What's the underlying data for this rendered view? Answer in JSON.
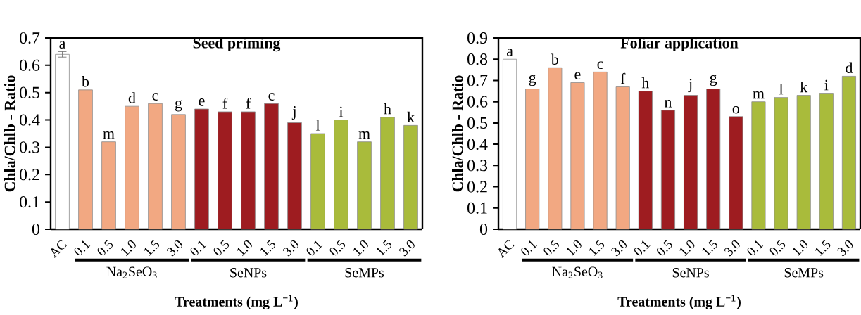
{
  "chart_data": [
    {
      "type": "bar",
      "title": "Seed priming",
      "xlabel": "Treatments (mg L$^{−1}$)",
      "ylabel": "Chla/Chlb - Ratio",
      "categories": [
        "AC",
        "0.1",
        "0.5",
        "1.0",
        "1.5",
        "3.0",
        "0.1",
        "0.5",
        "1.0",
        "1.5",
        "3.0",
        "0.1",
        "0.5",
        "1.0",
        "1.5",
        "3.0"
      ],
      "values": [
        0.64,
        0.51,
        0.32,
        0.45,
        0.46,
        0.42,
        0.44,
        0.43,
        0.43,
        0.46,
        0.39,
        0.35,
        0.4,
        0.32,
        0.41,
        0.38
      ],
      "errors": [
        0.01,
        null,
        null,
        null,
        null,
        null,
        null,
        null,
        null,
        null,
        null,
        null,
        null,
        null,
        null,
        null
      ],
      "value_labels": [
        "a",
        "b",
        "m",
        "d",
        "c",
        "g",
        "e",
        "f",
        "f",
        "c",
        "j",
        "l",
        "i",
        "m",
        "h",
        "k"
      ],
      "colors": [
        "#ffffff",
        "#f2a882",
        "#f2a882",
        "#f2a882",
        "#f2a882",
        "#f2a882",
        "#9e1c20",
        "#9e1c20",
        "#9e1c20",
        "#9e1c20",
        "#9e1c20",
        "#a9bb3b",
        "#a9bb3b",
        "#a9bb3b",
        "#a9bb3b",
        "#a9bb3b"
      ],
      "ylim": [
        0,
        0.7
      ],
      "yticks": [
        0,
        0.1,
        0.2,
        0.3,
        0.4,
        0.5,
        0.6,
        0.7
      ],
      "annotations": [
        "Na$_{2}$SeO$_{3}$",
        "SeNPs",
        "SeMPs"
      ]
    },
    {
      "type": "bar",
      "title": "Foliar application",
      "xlabel": "Treatments (mg L$^{−1}$)",
      "ylabel": "Chla/Chlb - Ratio",
      "categories": [
        "AC",
        "0.1",
        "0.5",
        "1.0",
        "1.5",
        "3.0",
        "0.1",
        "0.5",
        "1.0",
        "1.5",
        "3.0",
        "0.1",
        "0.5",
        "1.0",
        "1.5",
        "3.0"
      ],
      "values": [
        0.8,
        0.66,
        0.76,
        0.69,
        0.74,
        0.67,
        0.65,
        0.56,
        0.63,
        0.66,
        0.53,
        0.6,
        0.62,
        0.63,
        0.64,
        0.72
      ],
      "value_labels": [
        "a",
        "g",
        "b",
        "e",
        "c",
        "f",
        "h",
        "n",
        "j",
        "g",
        "o",
        "m",
        "l",
        "k",
        "i",
        "d"
      ],
      "colors": [
        "#ffffff",
        "#f2a882",
        "#f2a882",
        "#f2a882",
        "#f2a882",
        "#f2a882",
        "#9e1c20",
        "#9e1c20",
        "#9e1c20",
        "#9e1c20",
        "#9e1c20",
        "#a9bb3b",
        "#a9bb3b",
        "#a9bb3b",
        "#a9bb3b",
        "#a9bb3b"
      ],
      "ylim": [
        0,
        0.9
      ],
      "yticks": [
        0,
        0.1,
        0.2,
        0.3,
        0.4,
        0.5,
        0.6,
        0.7,
        0.8,
        0.9
      ],
      "annotations": [
        "Na$_{2}$SeO$_{3}$",
        "SeNPs",
        "SeMPs"
      ]
    }
  ]
}
